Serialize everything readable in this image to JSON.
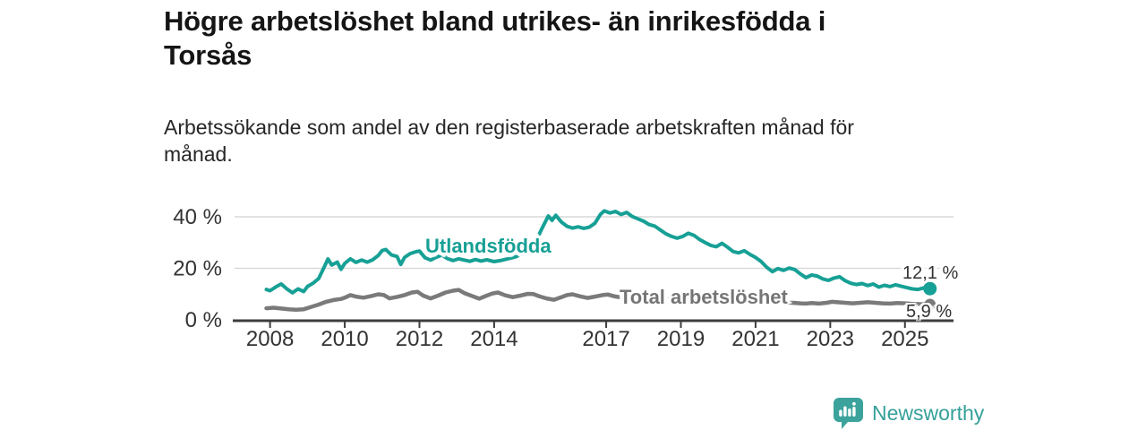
{
  "title": {
    "lines": [
      "Högre arbetslöshet bland utrikes- än inrikesfödda i",
      "Torsås"
    ]
  },
  "subtitle": {
    "lines": [
      "Arbetssökande som andel av den registerbaserade arbetskraften månad för",
      "månad."
    ]
  },
  "chart_data": {
    "type": "line",
    "title": "Högre arbetslöshet bland utrikes- än inrikesfödda i Torsås",
    "xlabel": "",
    "ylabel": "",
    "x_unit": "decimal year (monthly data)",
    "y_unit": "percent of registered workforce",
    "xlim": [
      2007.05,
      2026.3
    ],
    "ylim": [
      0,
      46
    ],
    "grid": "horizontal",
    "y_ticks": [
      {
        "value": 0,
        "label": "0 %"
      },
      {
        "value": 20,
        "label": "20 %"
      },
      {
        "value": 40,
        "label": "40 %"
      }
    ],
    "x_ticks": [
      {
        "value": 2008,
        "label": "2008"
      },
      {
        "value": 2010,
        "label": "2010"
      },
      {
        "value": 2012,
        "label": "2012"
      },
      {
        "value": 2014,
        "label": "2014"
      },
      {
        "value": 2017,
        "label": "2017"
      },
      {
        "value": 2019,
        "label": "2019"
      },
      {
        "value": 2021,
        "label": "2021"
      },
      {
        "value": 2023,
        "label": "2023"
      },
      {
        "value": 2025,
        "label": "2025"
      }
    ],
    "series": [
      {
        "name": "Total arbetslöshet",
        "color": "#7a7a7a",
        "end_value": 5.9,
        "end_label": "5,9 %",
        "points": [
          [
            2007.9,
            4.5
          ],
          [
            2008.1,
            4.7
          ],
          [
            2008.3,
            4.4
          ],
          [
            2008.5,
            4.1
          ],
          [
            2008.7,
            3.9
          ],
          [
            2008.9,
            4.1
          ],
          [
            2009.1,
            5.0
          ],
          [
            2009.3,
            5.9
          ],
          [
            2009.5,
            7.0
          ],
          [
            2009.7,
            7.7
          ],
          [
            2009.9,
            8.1
          ],
          [
            2010.0,
            8.6
          ],
          [
            2010.15,
            9.6
          ],
          [
            2010.3,
            9.0
          ],
          [
            2010.5,
            8.6
          ],
          [
            2010.7,
            9.2
          ],
          [
            2010.9,
            9.9
          ],
          [
            2011.05,
            9.6
          ],
          [
            2011.2,
            8.3
          ],
          [
            2011.4,
            8.9
          ],
          [
            2011.6,
            9.6
          ],
          [
            2011.8,
            10.6
          ],
          [
            2011.95,
            10.9
          ],
          [
            2012.1,
            9.4
          ],
          [
            2012.3,
            8.3
          ],
          [
            2012.5,
            9.4
          ],
          [
            2012.7,
            10.6
          ],
          [
            2012.9,
            11.3
          ],
          [
            2013.05,
            11.6
          ],
          [
            2013.2,
            10.4
          ],
          [
            2013.4,
            9.3
          ],
          [
            2013.6,
            8.2
          ],
          [
            2013.8,
            9.4
          ],
          [
            2013.95,
            10.2
          ],
          [
            2014.1,
            10.6
          ],
          [
            2014.3,
            9.5
          ],
          [
            2014.5,
            8.8
          ],
          [
            2014.7,
            9.4
          ],
          [
            2014.9,
            10.1
          ],
          [
            2015.05,
            10.0
          ],
          [
            2015.2,
            9.2
          ],
          [
            2015.4,
            8.3
          ],
          [
            2015.6,
            7.8
          ],
          [
            2015.8,
            8.8
          ],
          [
            2015.95,
            9.6
          ],
          [
            2016.1,
            9.9
          ],
          [
            2016.3,
            9.1
          ],
          [
            2016.5,
            8.5
          ],
          [
            2016.7,
            9.0
          ],
          [
            2016.9,
            9.6
          ],
          [
            2017.05,
            9.8
          ],
          [
            2017.2,
            9.2
          ],
          [
            2017.4,
            8.7
          ],
          [
            2017.6,
            8.4
          ],
          [
            2017.8,
            8.9
          ],
          [
            2018.0,
            9.1
          ],
          [
            2018.2,
            8.6
          ],
          [
            2018.4,
            8.1
          ],
          [
            2018.6,
            7.9
          ],
          [
            2018.8,
            8.4
          ],
          [
            2019.0,
            8.8
          ],
          [
            2019.2,
            8.5
          ],
          [
            2019.4,
            8.1
          ],
          [
            2019.6,
            7.9
          ],
          [
            2019.8,
            8.3
          ],
          [
            2020.0,
            8.7
          ],
          [
            2020.2,
            9.2
          ],
          [
            2020.4,
            9.0
          ],
          [
            2020.6,
            8.6
          ],
          [
            2020.8,
            8.2
          ],
          [
            2021.0,
            7.9
          ],
          [
            2021.2,
            7.5
          ],
          [
            2021.4,
            7.2
          ],
          [
            2021.6,
            6.9
          ],
          [
            2021.8,
            6.7
          ],
          [
            2022.0,
            6.6
          ],
          [
            2022.2,
            6.4
          ],
          [
            2022.35,
            6.3
          ],
          [
            2022.5,
            6.5
          ],
          [
            2022.7,
            6.3
          ],
          [
            2022.9,
            6.6
          ],
          [
            2023.05,
            7.0
          ],
          [
            2023.2,
            6.8
          ],
          [
            2023.4,
            6.6
          ],
          [
            2023.6,
            6.4
          ],
          [
            2023.8,
            6.6
          ],
          [
            2024.0,
            6.8
          ],
          [
            2024.2,
            6.6
          ],
          [
            2024.4,
            6.4
          ],
          [
            2024.6,
            6.3
          ],
          [
            2024.8,
            6.5
          ],
          [
            2025.0,
            6.4
          ],
          [
            2025.2,
            6.2
          ],
          [
            2025.4,
            6.1
          ],
          [
            2025.55,
            6.0
          ],
          [
            2025.67,
            5.9
          ]
        ]
      },
      {
        "name": "Utlandsfödda",
        "color": "#17A095",
        "end_value": 12.1,
        "end_label": "12,1 %",
        "points": [
          [
            2007.9,
            11.8
          ],
          [
            2008.0,
            11.3
          ],
          [
            2008.17,
            12.9
          ],
          [
            2008.3,
            13.9
          ],
          [
            2008.45,
            12.0
          ],
          [
            2008.6,
            10.5
          ],
          [
            2008.75,
            12.0
          ],
          [
            2008.9,
            11.0
          ],
          [
            2009.0,
            12.9
          ],
          [
            2009.15,
            14.2
          ],
          [
            2009.3,
            16.0
          ],
          [
            2009.45,
            20.5
          ],
          [
            2009.55,
            23.6
          ],
          [
            2009.65,
            21.3
          ],
          [
            2009.8,
            22.4
          ],
          [
            2009.9,
            19.6
          ],
          [
            2010.0,
            21.9
          ],
          [
            2010.15,
            23.7
          ],
          [
            2010.3,
            22.3
          ],
          [
            2010.45,
            23.2
          ],
          [
            2010.6,
            22.4
          ],
          [
            2010.75,
            23.3
          ],
          [
            2010.9,
            25.0
          ],
          [
            2011.0,
            26.9
          ],
          [
            2011.1,
            27.3
          ],
          [
            2011.25,
            25.2
          ],
          [
            2011.4,
            24.6
          ],
          [
            2011.5,
            21.5
          ],
          [
            2011.6,
            24.2
          ],
          [
            2011.75,
            25.7
          ],
          [
            2011.9,
            26.4
          ],
          [
            2012.0,
            26.7
          ],
          [
            2012.15,
            24.1
          ],
          [
            2012.3,
            23.2
          ],
          [
            2012.45,
            24.3
          ],
          [
            2012.6,
            25.1
          ],
          [
            2012.75,
            23.8
          ],
          [
            2012.9,
            23.0
          ],
          [
            2013.05,
            23.7
          ],
          [
            2013.2,
            23.2
          ],
          [
            2013.35,
            22.7
          ],
          [
            2013.5,
            23.4
          ],
          [
            2013.65,
            22.8
          ],
          [
            2013.8,
            23.3
          ],
          [
            2014.0,
            22.6
          ],
          [
            2014.2,
            23.1
          ],
          [
            2014.4,
            23.8
          ],
          [
            2014.6,
            24.6
          ],
          [
            2014.8,
            26.0
          ],
          [
            2015.0,
            28.5
          ],
          [
            2015.15,
            31.5
          ],
          [
            2015.3,
            36.0
          ],
          [
            2015.45,
            40.3
          ],
          [
            2015.55,
            38.6
          ],
          [
            2015.65,
            40.6
          ],
          [
            2015.8,
            38.0
          ],
          [
            2015.95,
            36.3
          ],
          [
            2016.1,
            35.6
          ],
          [
            2016.25,
            36.1
          ],
          [
            2016.4,
            35.5
          ],
          [
            2016.55,
            36.0
          ],
          [
            2016.7,
            37.5
          ],
          [
            2016.85,
            41.0
          ],
          [
            2016.95,
            42.3
          ],
          [
            2017.1,
            41.5
          ],
          [
            2017.25,
            42.1
          ],
          [
            2017.4,
            40.9
          ],
          [
            2017.55,
            41.7
          ],
          [
            2017.7,
            40.1
          ],
          [
            2017.85,
            39.2
          ],
          [
            2018.0,
            38.3
          ],
          [
            2018.15,
            37.0
          ],
          [
            2018.3,
            36.4
          ],
          [
            2018.45,
            34.9
          ],
          [
            2018.6,
            33.4
          ],
          [
            2018.75,
            32.4
          ],
          [
            2018.9,
            31.7
          ],
          [
            2019.05,
            32.4
          ],
          [
            2019.2,
            33.6
          ],
          [
            2019.35,
            32.8
          ],
          [
            2019.5,
            31.2
          ],
          [
            2019.65,
            30.0
          ],
          [
            2019.8,
            28.9
          ],
          [
            2019.95,
            28.4
          ],
          [
            2020.1,
            29.7
          ],
          [
            2020.25,
            28.2
          ],
          [
            2020.4,
            26.5
          ],
          [
            2020.55,
            26.0
          ],
          [
            2020.7,
            26.8
          ],
          [
            2020.85,
            25.4
          ],
          [
            2021.0,
            24.2
          ],
          [
            2021.15,
            22.6
          ],
          [
            2021.3,
            20.4
          ],
          [
            2021.45,
            18.7
          ],
          [
            2021.6,
            19.9
          ],
          [
            2021.75,
            19.2
          ],
          [
            2021.9,
            20.1
          ],
          [
            2022.05,
            19.5
          ],
          [
            2022.2,
            17.8
          ],
          [
            2022.35,
            16.4
          ],
          [
            2022.5,
            17.4
          ],
          [
            2022.65,
            17.0
          ],
          [
            2022.8,
            15.9
          ],
          [
            2022.95,
            15.3
          ],
          [
            2023.1,
            16.2
          ],
          [
            2023.25,
            16.7
          ],
          [
            2023.4,
            15.2
          ],
          [
            2023.55,
            14.2
          ],
          [
            2023.7,
            13.7
          ],
          [
            2023.85,
            14.1
          ],
          [
            2024.0,
            13.3
          ],
          [
            2024.15,
            13.9
          ],
          [
            2024.3,
            12.7
          ],
          [
            2024.45,
            13.4
          ],
          [
            2024.6,
            12.9
          ],
          [
            2024.75,
            13.6
          ],
          [
            2024.9,
            13.0
          ],
          [
            2025.05,
            12.5
          ],
          [
            2025.2,
            12.0
          ],
          [
            2025.35,
            11.8
          ],
          [
            2025.5,
            12.4
          ],
          [
            2025.6,
            11.9
          ],
          [
            2025.67,
            12.1
          ]
        ]
      }
    ],
    "legend_position": "inline-labels-on-lines",
    "colors": {
      "accent_teal": "#17A095",
      "series_gray": "#7a7a7a",
      "axis": "#3d3d3d",
      "gridline": "#d9d9d9",
      "tick_label": "#333333"
    }
  },
  "branding": {
    "logo_text": "Newsworthy",
    "logo_icon": "newsworthy-speech-bubble-bar-chart-icon",
    "logo_color": "#3BA39B"
  }
}
